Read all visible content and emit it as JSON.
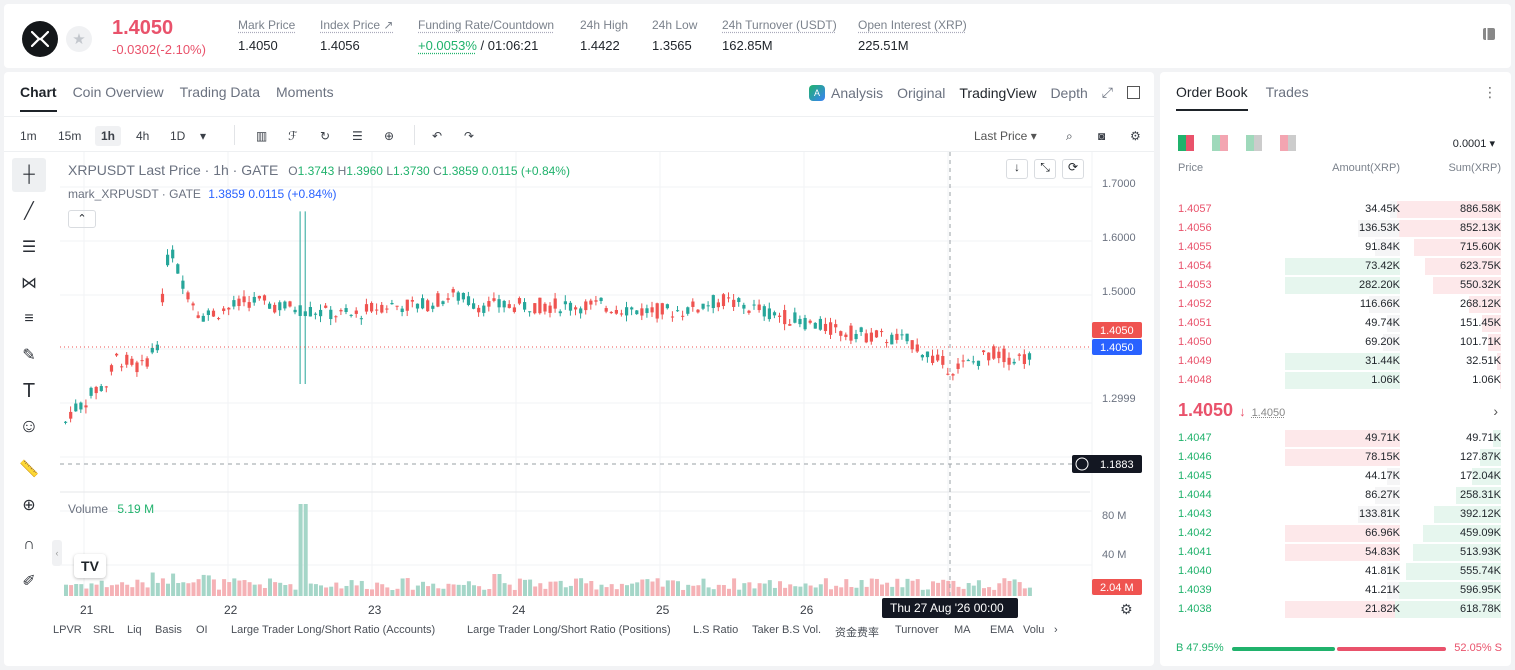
{
  "header": {
    "last_price": "1.4050",
    "change": "-0.0302(-2.10%)",
    "stats": [
      {
        "label": "Mark Price",
        "value": "1.4050"
      },
      {
        "label": "Index Price ↗",
        "value": "1.4056"
      },
      {
        "label": "Funding Rate/Countdown",
        "value": "+0.0053%",
        "value2": "/ 01:06:21"
      },
      {
        "label": "24h High",
        "value": "1.4422"
      },
      {
        "label": "24h Low",
        "value": "1.3565"
      },
      {
        "label": "24h Turnover (USDT)",
        "value": "162.85M"
      },
      {
        "label": "Open Interest (XRP)",
        "value": "225.51M"
      }
    ]
  },
  "chart_tabs": [
    "Chart",
    "Coin Overview",
    "Trading Data",
    "Moments"
  ],
  "view_tabs": {
    "analysis": "Analysis",
    "original": "Original",
    "tradingview": "TradingView",
    "depth": "Depth"
  },
  "intervals": [
    "1m",
    "15m",
    "1h",
    "4h",
    "1D"
  ],
  "price_type": "Last Price",
  "legend": {
    "symbol": "XRPUSDT Last Price · 1h · GATE",
    "o_label": "O",
    "o": "1.3743",
    "h_label": "H",
    "h": "1.3960",
    "l_label": "L",
    "l": "1.3730",
    "c_label": "C",
    "c": "1.3859",
    "chg": "0.0115 (+0.84%)",
    "mark_label": "mark_XRPUSDT · GATE",
    "mark_val": "1.3859",
    "mark_chg": "0.0115",
    "mark_pct": "(+0.84%)"
  },
  "volume": {
    "label": "Volume",
    "value": "5.19 M"
  },
  "price_axis": [
    "1.7000",
    "1.6000",
    "1.5000",
    "1.2999"
  ],
  "vol_axis": [
    "80 M",
    "40 M"
  ],
  "labels": {
    "ask_tag": "1.4050",
    "bid_tag": "1.4050",
    "crosshair_price": "1.1883",
    "vol_tag": "2.04 M",
    "crosshair_time": "Thu 27 Aug '26   00:00"
  },
  "x_axis": [
    "21",
    "22",
    "23",
    "24",
    "25",
    "26"
  ],
  "indicators": [
    "LPVR",
    "SRL",
    "Liq",
    "Basis",
    "OI",
    "Large Trader Long/Short Ratio (Accounts)",
    "Large Trader Long/Short Ratio (Positions)",
    "L.S Ratio",
    "Taker B.S Vol.",
    "资金费率",
    "Turnover",
    "MA",
    "EMA",
    "Volu"
  ],
  "orderbook": {
    "tabs": [
      "Order Book",
      "Trades"
    ],
    "precision": "0.0001",
    "cols": {
      "price": "Price",
      "amount": "Amount(XRP)",
      "sum": "Sum(XRP)"
    },
    "asks": [
      {
        "p": "1.4057",
        "a": "34.45K",
        "s": "886.58K",
        "af": 0.05,
        "sf": 0.98
      },
      {
        "p": "1.4056",
        "a": "136.53K",
        "s": "852.13K",
        "af": 0.2,
        "sf": 0.96
      },
      {
        "p": "1.4055",
        "a": "91.84K",
        "s": "715.60K",
        "af": 0.12,
        "sf": 0.82
      },
      {
        "p": "1.4054",
        "a": "73.42K",
        "s": "623.75K",
        "af": 0.55,
        "sf": 0.72
      },
      {
        "p": "1.4053",
        "a": "282.20K",
        "s": "550.32K",
        "af": 0.55,
        "sf": 0.64
      },
      {
        "p": "1.4052",
        "a": "116.66K",
        "s": "268.12K",
        "af": 0.15,
        "sf": 0.3
      },
      {
        "p": "1.4051",
        "a": "49.74K",
        "s": "151.45K",
        "af": 0.06,
        "sf": 0.18
      },
      {
        "p": "1.4050",
        "a": "69.20K",
        "s": "101.71K",
        "af": 0.08,
        "sf": 0.12
      },
      {
        "p": "1.4049",
        "a": "31.44K",
        "s": "32.51K",
        "af": 0.55,
        "sf": 0.04
      },
      {
        "p": "1.4048",
        "a": "1.06K",
        "s": "1.06K",
        "af": 0.55,
        "sf": 0.01
      }
    ],
    "mid_price": "1.4050",
    "mid_mark": "1.4050",
    "bids": [
      {
        "p": "1.4047",
        "a": "49.71K",
        "s": "49.71K",
        "af": 0.55,
        "sf": 0.08
      },
      {
        "p": "1.4046",
        "a": "78.15K",
        "s": "127.87K",
        "af": 0.55,
        "sf": 0.2
      },
      {
        "p": "1.4045",
        "a": "44.17K",
        "s": "172.04K",
        "af": 0.06,
        "sf": 0.27
      },
      {
        "p": "1.4044",
        "a": "86.27K",
        "s": "258.31K",
        "af": 0.12,
        "sf": 0.42
      },
      {
        "p": "1.4043",
        "a": "133.81K",
        "s": "392.12K",
        "af": 0.2,
        "sf": 0.63
      },
      {
        "p": "1.4042",
        "a": "66.96K",
        "s": "459.09K",
        "af": 0.55,
        "sf": 0.74
      },
      {
        "p": "1.4041",
        "a": "54.83K",
        "s": "513.93K",
        "af": 0.55,
        "sf": 0.83
      },
      {
        "p": "1.4040",
        "a": "41.81K",
        "s": "555.74K",
        "af": 0.06,
        "sf": 0.9
      },
      {
        "p": "1.4039",
        "a": "41.21K",
        "s": "596.95K",
        "af": 0.06,
        "sf": 0.96
      },
      {
        "p": "1.4038",
        "a": "21.82K",
        "s": "618.78K",
        "af": 0.55,
        "sf": 1.0
      }
    ],
    "buy_ratio": "B 47.95%",
    "sell_ratio": "52.05% S",
    "buy_frac": 0.4795
  },
  "colors": {
    "up": "#20b26c",
    "down": "#e9526b",
    "ask_bg": "#fde8ea",
    "bid_bg": "#e6f6ee"
  }
}
